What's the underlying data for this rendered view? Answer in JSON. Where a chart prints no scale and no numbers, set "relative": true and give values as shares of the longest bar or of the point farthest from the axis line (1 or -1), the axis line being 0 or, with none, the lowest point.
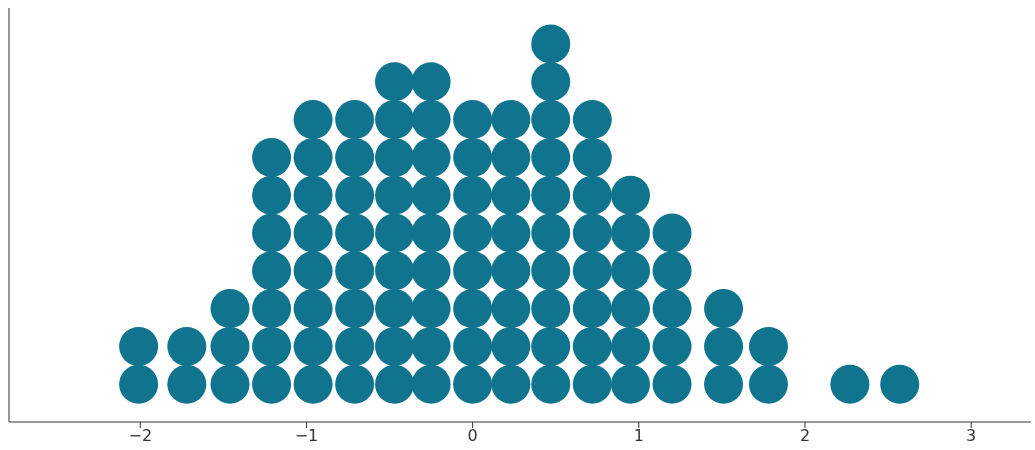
{
  "chart_data": {
    "type": "scatter",
    "color": "#11748f",
    "marker": "circle",
    "grid": false,
    "xlim": [
      -2.79,
      3.36
    ],
    "xticks": [
      {
        "value": -2,
        "label": "−2"
      },
      {
        "value": -1,
        "label": "−1"
      },
      0,
      1,
      2,
      3
    ],
    "relative": true,
    "x": [
      -2.01,
      -2.01,
      -1.72,
      -1.72,
      -1.46,
      -1.46,
      -1.46,
      -1.21,
      -1.21,
      -1.21,
      -1.21,
      -1.21,
      -1.21,
      -1.21,
      -0.96,
      -0.96,
      -0.96,
      -0.96,
      -0.96,
      -0.96,
      -0.96,
      -0.96,
      -0.71,
      -0.71,
      -0.71,
      -0.71,
      -0.71,
      -0.71,
      -0.71,
      -0.71,
      -0.47,
      -0.47,
      -0.47,
      -0.47,
      -0.47,
      -0.47,
      -0.47,
      -0.47,
      -0.47,
      -0.25,
      -0.25,
      -0.25,
      -0.25,
      -0.25,
      -0.25,
      -0.25,
      -0.25,
      -0.25,
      0,
      0,
      0,
      0,
      0,
      0,
      0,
      0,
      0.23,
      0.23,
      0.23,
      0.23,
      0.23,
      0.23,
      0.23,
      0.23,
      0.47,
      0.47,
      0.47,
      0.47,
      0.47,
      0.47,
      0.47,
      0.47,
      0.47,
      0.47,
      0.72,
      0.72,
      0.72,
      0.72,
      0.72,
      0.72,
      0.72,
      0.72,
      0.95,
      0.95,
      0.95,
      0.95,
      0.95,
      0.95,
      1.2,
      1.2,
      1.2,
      1.2,
      1.2,
      1.51,
      1.51,
      1.51,
      1.78,
      1.78,
      2.27,
      2.57
    ],
    "values": [
      0.1,
      0.2,
      0.1,
      0.2,
      0.1,
      0.2,
      0.3,
      0.1,
      0.2,
      0.3,
      0.4,
      0.5,
      0.6,
      0.7,
      0.1,
      0.2,
      0.3,
      0.4,
      0.5,
      0.6,
      0.7,
      0.8,
      0.1,
      0.2,
      0.3,
      0.4,
      0.5,
      0.6,
      0.7,
      0.8,
      0.1,
      0.2,
      0.3,
      0.4,
      0.5,
      0.6,
      0.7,
      0.8,
      0.9,
      0.1,
      0.2,
      0.3,
      0.4,
      0.5,
      0.6,
      0.7,
      0.8,
      0.9,
      0.1,
      0.2,
      0.3,
      0.4,
      0.5,
      0.6,
      0.7,
      0.8,
      0.1,
      0.2,
      0.3,
      0.4,
      0.5,
      0.6,
      0.7,
      0.8,
      0.1,
      0.2,
      0.3,
      0.4,
      0.5,
      0.6,
      0.7,
      0.8,
      0.9,
      1,
      0.1,
      0.2,
      0.3,
      0.4,
      0.5,
      0.6,
      0.7,
      0.8,
      0.1,
      0.2,
      0.3,
      0.4,
      0.5,
      0.6,
      0.1,
      0.2,
      0.3,
      0.4,
      0.5,
      0.1,
      0.2,
      0.3,
      0.1,
      0.2,
      0.1,
      0.1
    ]
  }
}
